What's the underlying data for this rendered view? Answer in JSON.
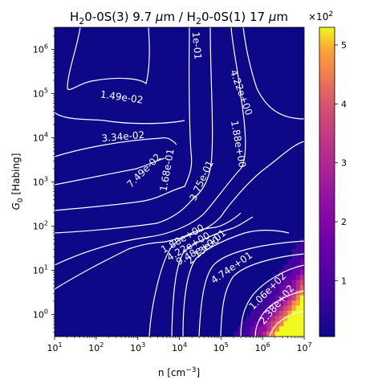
{
  "chart_data": {
    "type": "heatmap",
    "title_parts": {
      "species_a": "H",
      "sub_a": "2",
      "rest_a": "0-0S(3) 9.7 ",
      "mu": "μ",
      "unit_a": "m / H",
      "sub_b": "2",
      "rest_b": "0-0S(1) 17 ",
      "mu2": "μ",
      "unit_b": "m"
    },
    "xlabel": "n [cm",
    "xlabel_sup": "−3",
    "xlabel_end": "]",
    "ylabel_main": "G",
    "ylabel_sub": "0",
    "ylabel_rest": " [Habing]",
    "x_scale": "log",
    "y_scale": "log",
    "xlim": [
      10,
      10000000
    ],
    "ylim": [
      0.316,
      3162000
    ],
    "x_ticks": [
      {
        "base": "10",
        "exp": "1",
        "value": 10
      },
      {
        "base": "10",
        "exp": "2",
        "value": 100
      },
      {
        "base": "10",
        "exp": "3",
        "value": 1000
      },
      {
        "base": "10",
        "exp": "4",
        "value": 10000
      },
      {
        "base": "10",
        "exp": "5",
        "value": 100000
      },
      {
        "base": "10",
        "exp": "6",
        "value": 1000000
      },
      {
        "base": "10",
        "exp": "7",
        "value": 10000000
      }
    ],
    "y_ticks": [
      {
        "base": "10",
        "exp": "0",
        "value": 1
      },
      {
        "base": "10",
        "exp": "1",
        "value": 10
      },
      {
        "base": "10",
        "exp": "2",
        "value": 100
      },
      {
        "base": "10",
        "exp": "3",
        "value": 1000
      },
      {
        "base": "10",
        "exp": "4",
        "value": 10000
      },
      {
        "base": "10",
        "exp": "5",
        "value": 100000
      },
      {
        "base": "10",
        "exp": "6",
        "value": 1000000
      }
    ],
    "colorbar": {
      "colormap": "plasma",
      "multiplier_base": "×10",
      "multiplier_exp": "2",
      "min": 0.05,
      "max": 5.3,
      "ticks": [
        "1",
        "2",
        "3",
        "4",
        "5"
      ],
      "tick_values": [
        1,
        2,
        3,
        4,
        5
      ]
    },
    "contour_labels": [
      {
        "text": "1.49e-02",
        "n": 400,
        "g": 70000,
        "angle": 8
      },
      {
        "text": "3.34e-02",
        "n": 450,
        "g": 9000,
        "angle": -5
      },
      {
        "text": "7.49e-02",
        "n": 1600,
        "g": 1600,
        "angle": -45
      },
      {
        "text": "1.68e-01",
        "n": 6000,
        "g": 1800,
        "angle": -80
      },
      {
        "text": "3.75e-01",
        "n": 40000,
        "g": 1000,
        "angle": -65
      },
      {
        "text": "1e-01",
        "n": 22000,
        "g": 1200000,
        "angle": 85
      },
      {
        "text": "4.22e+00",
        "n": 260000,
        "g": 100000,
        "angle": 70
      },
      {
        "text": "1.88e+00",
        "n": 220000,
        "g": 7000,
        "angle": 80
      },
      {
        "text": "1.88e+00",
        "n": 13000,
        "g": 45,
        "angle": -30
      },
      {
        "text": "4.22e+00",
        "n": 18000,
        "g": 30,
        "angle": -30
      },
      {
        "text": "9.48e+00",
        "n": 30000,
        "g": 24,
        "angle": -30
      },
      {
        "text": "2.13e+01",
        "n": 50000,
        "g": 30,
        "angle": -40
      },
      {
        "text": "4.74e+01",
        "n": 200000,
        "g": 10,
        "angle": -35
      },
      {
        "text": "1.06e+02",
        "n": 1500000,
        "g": 3,
        "angle": -45
      },
      {
        "text": "2.38e+02",
        "n": 2500000,
        "g": 1.5,
        "angle": -50
      }
    ],
    "field_value_range": [
      0.01,
      530
    ],
    "notes_values_unit": "ratio"
  }
}
